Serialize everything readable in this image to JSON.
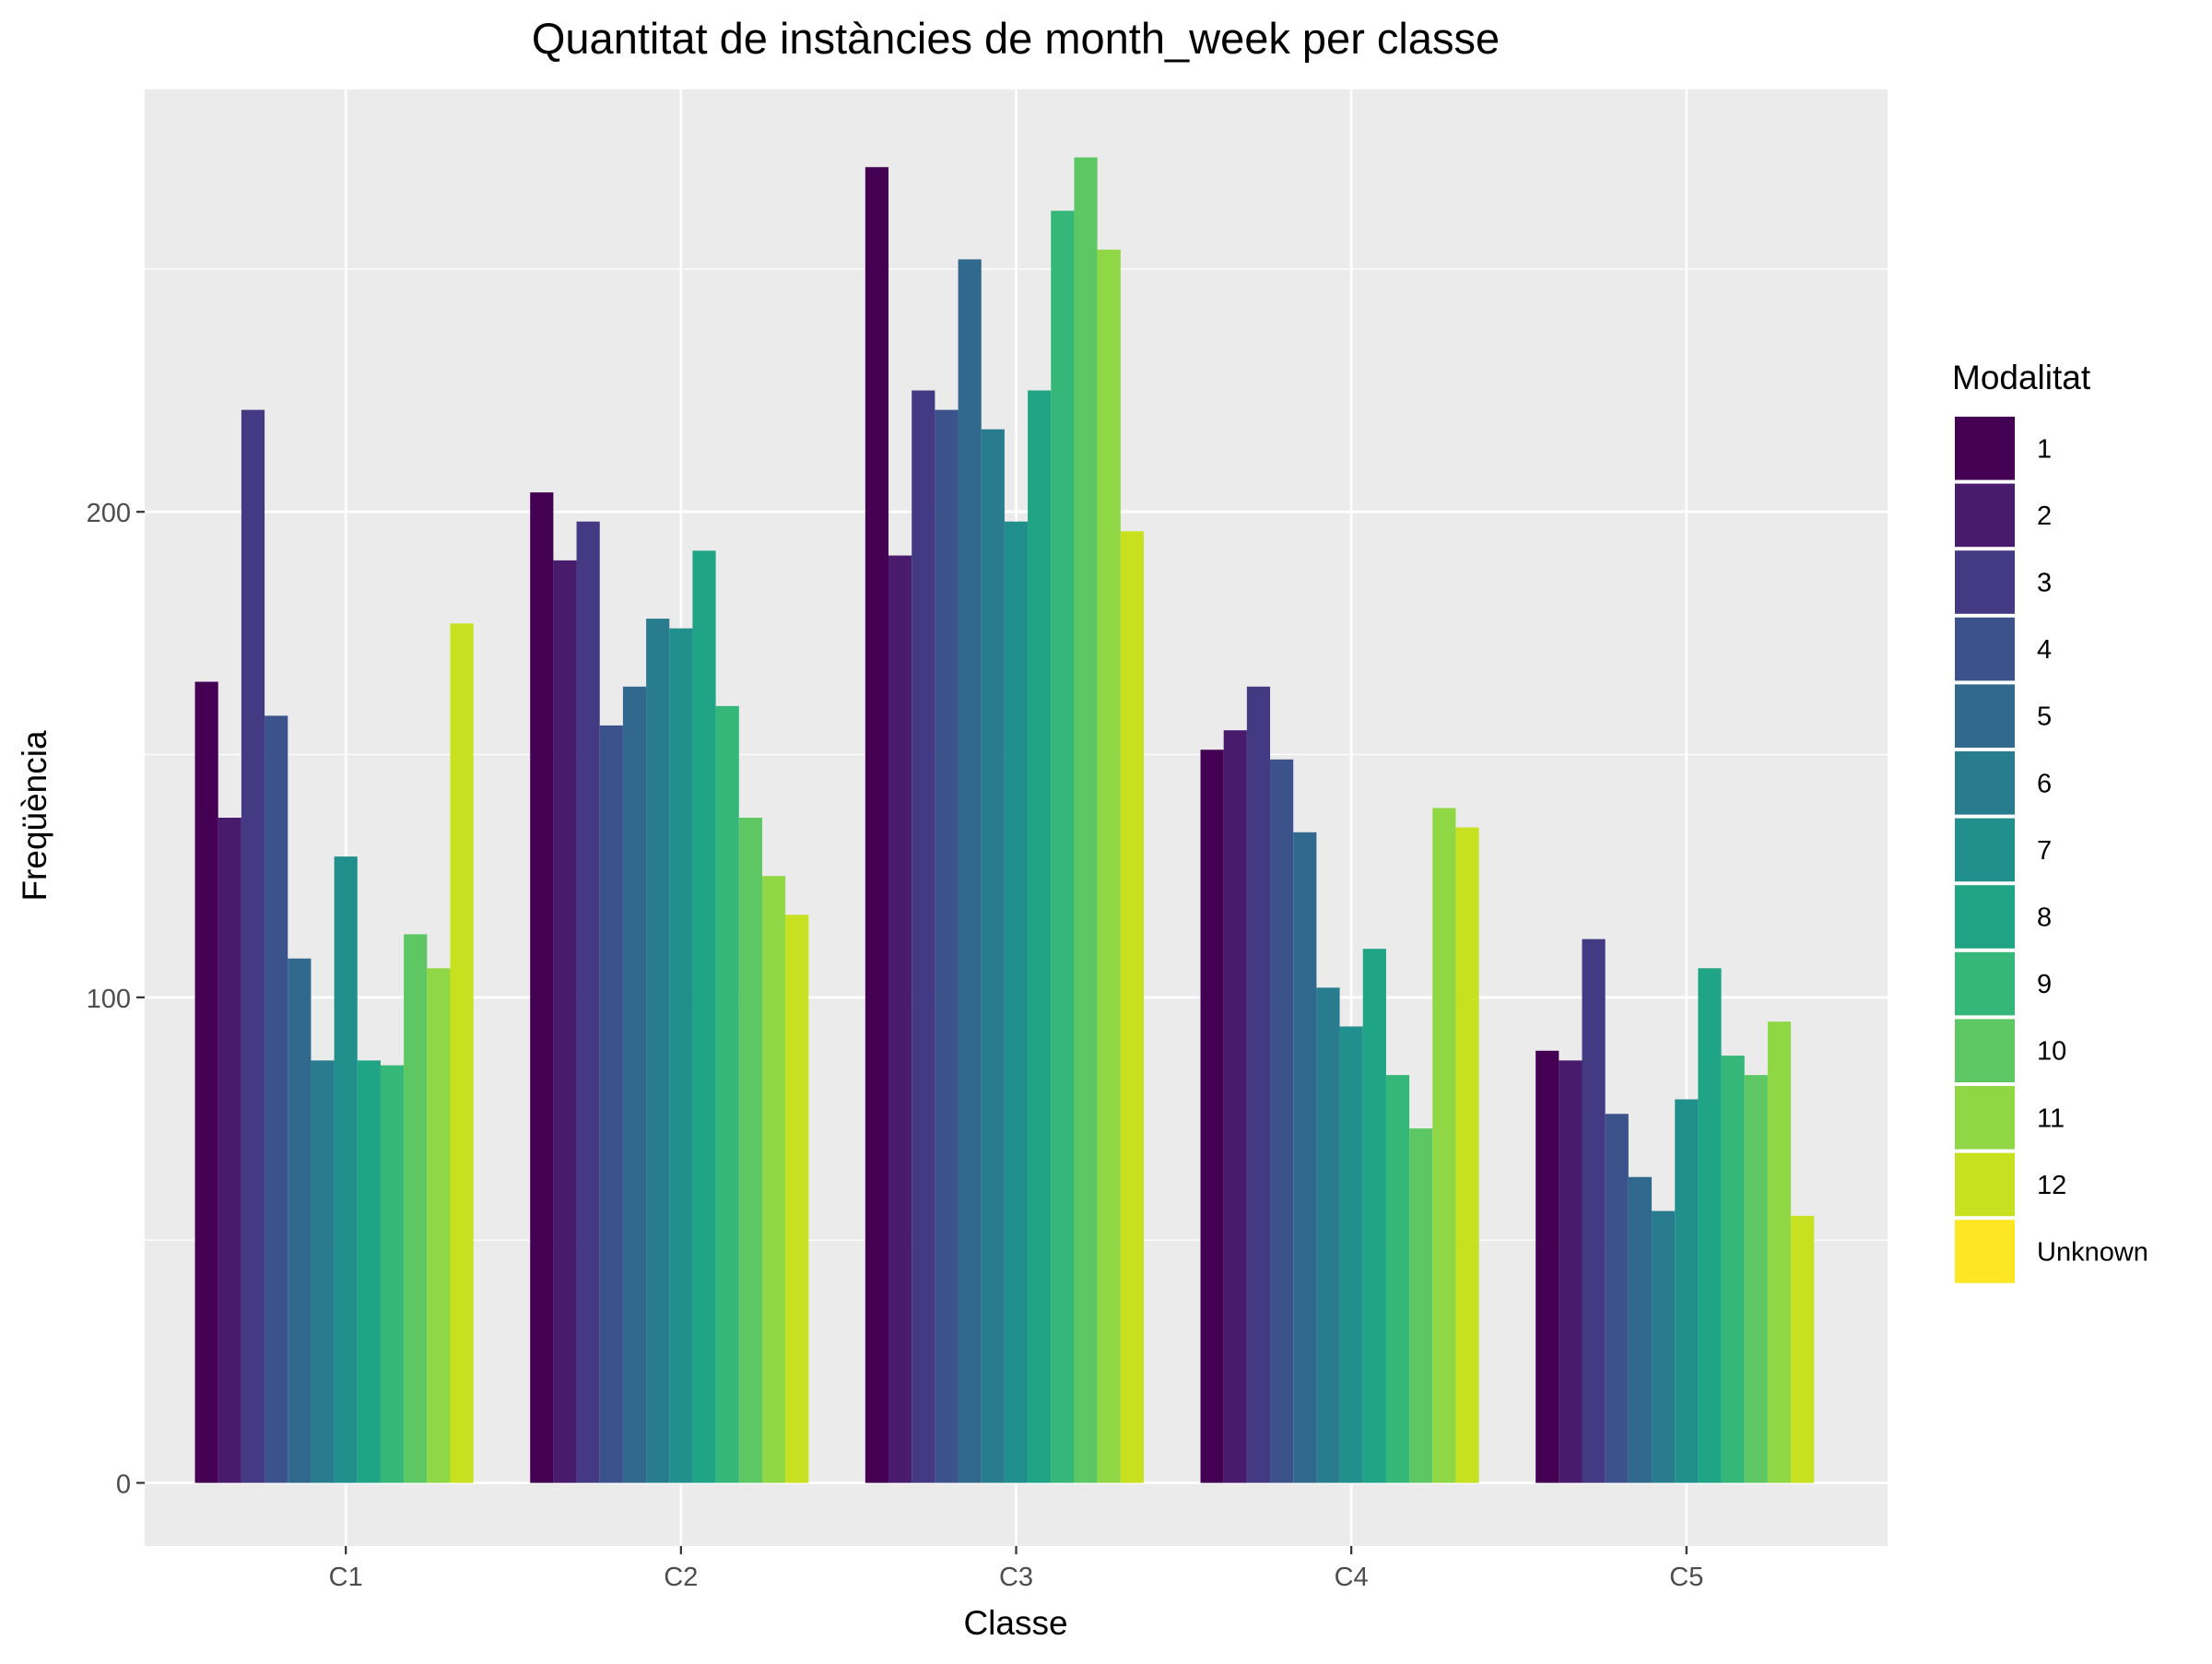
{
  "chart_data": {
    "type": "bar",
    "title": "Quantitat de instàncies de month_week per classe",
    "xlabel": "Classe",
    "ylabel": "Freqüència",
    "categories": [
      "C1",
      "C2",
      "C3",
      "C4",
      "C5"
    ],
    "ylim": [
      -13,
      287
    ],
    "yticks": [
      0,
      100,
      200
    ],
    "grid": true,
    "legend": {
      "title": "Modalitat",
      "position": "right"
    },
    "series": [
      {
        "name": "1",
        "color": "#440154",
        "values": [
          165,
          204,
          271,
          151,
          89
        ]
      },
      {
        "name": "2",
        "color": "#481B6D",
        "values": [
          137,
          190,
          191,
          155,
          87
        ]
      },
      {
        "name": "3",
        "color": "#443983",
        "values": [
          221,
          198,
          225,
          164,
          112
        ]
      },
      {
        "name": "4",
        "color": "#3B528B",
        "values": [
          158,
          156,
          221,
          149,
          76
        ]
      },
      {
        "name": "5",
        "color": "#31688E",
        "values": [
          108,
          164,
          252,
          134,
          63
        ]
      },
      {
        "name": "6",
        "color": "#287C8E",
        "values": [
          87,
          178,
          217,
          102,
          56
        ]
      },
      {
        "name": "7",
        "color": "#21908C",
        "values": [
          129,
          176,
          198,
          94,
          79
        ]
      },
      {
        "name": "8",
        "color": "#20A486",
        "values": [
          87,
          192,
          225,
          110,
          106
        ]
      },
      {
        "name": "9",
        "color": "#35B779",
        "values": [
          86,
          160,
          262,
          84,
          88
        ]
      },
      {
        "name": "10",
        "color": "#5DC863",
        "values": [
          113,
          137,
          273,
          73,
          84
        ]
      },
      {
        "name": "11",
        "color": "#8FD744",
        "values": [
          106,
          125,
          254,
          139,
          95
        ]
      },
      {
        "name": "12",
        "color": "#C7E020",
        "values": [
          177,
          117,
          196,
          135,
          55
        ]
      },
      {
        "name": "Unknown",
        "color": "#FDE725",
        "values": [
          0,
          0,
          0,
          0,
          0
        ]
      }
    ]
  }
}
